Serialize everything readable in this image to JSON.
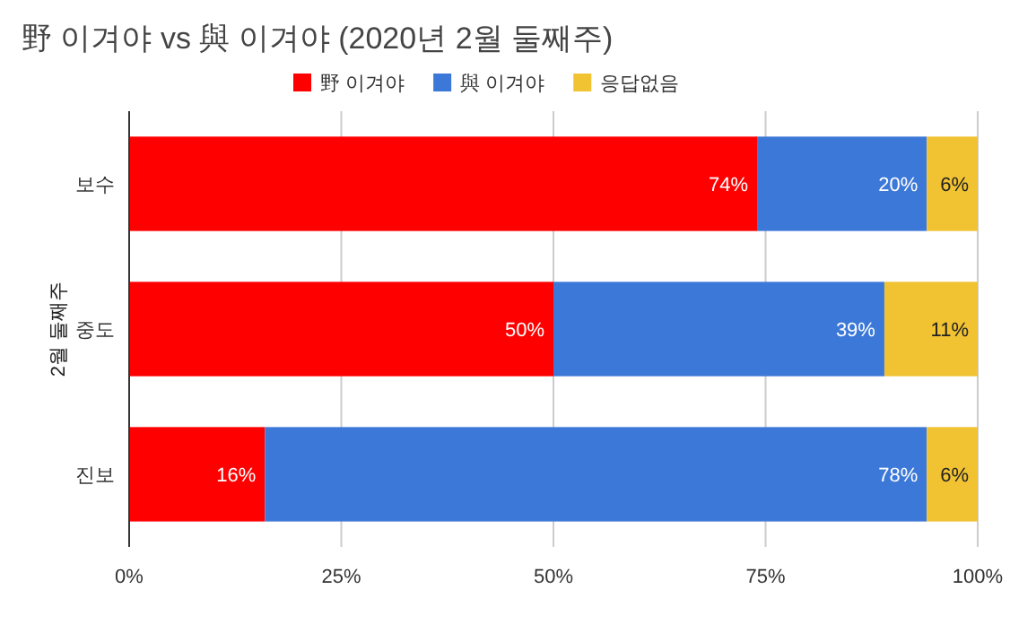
{
  "chart_data": {
    "type": "bar",
    "orientation": "horizontal",
    "stacked": true,
    "title": "野 이겨야 vs 與 이겨야 (2020년 2월 둘째주)",
    "ylabel": "2월 둘째주",
    "categories": [
      "보수",
      "중도",
      "진보"
    ],
    "series": [
      {
        "name": "野 이겨야",
        "color": "#ff0000",
        "values": [
          74,
          50,
          16
        ],
        "value_labels": [
          "74%",
          "50%",
          "16%"
        ]
      },
      {
        "name": "與 이겨야",
        "color": "#3c78d8",
        "values": [
          20,
          39,
          78
        ],
        "value_labels": [
          "20%",
          "39%",
          "78%"
        ]
      },
      {
        "name": "응답없음",
        "color": "#f1c232",
        "values": [
          6,
          11,
          6
        ],
        "value_labels": [
          "6%",
          "11%",
          "6%"
        ]
      }
    ],
    "xlim": [
      0,
      100
    ],
    "xticks": [
      {
        "value": 0,
        "label": "0%"
      },
      {
        "value": 25,
        "label": "25%"
      },
      {
        "value": 50,
        "label": "50%"
      },
      {
        "value": 75,
        "label": "75%"
      },
      {
        "value": 100,
        "label": "100%"
      }
    ],
    "grid": "x",
    "legend": "top"
  }
}
